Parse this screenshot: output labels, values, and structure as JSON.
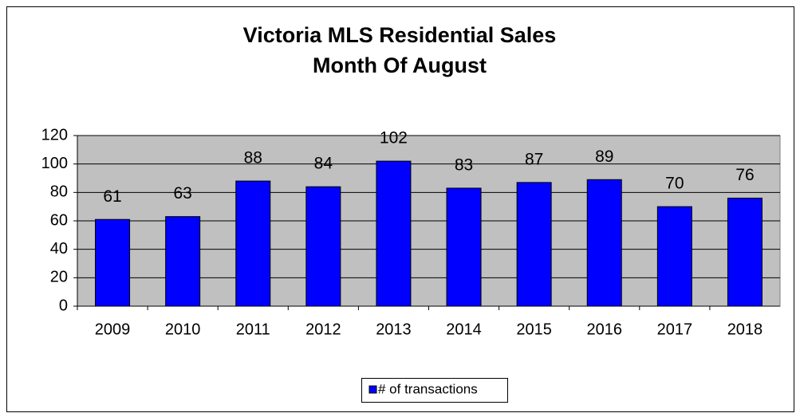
{
  "chart_data": {
    "type": "bar",
    "title": "Victoria MLS Residential Sales",
    "subtitle": "Month Of August",
    "categories": [
      "2009",
      "2010",
      "2011",
      "2012",
      "2013",
      "2014",
      "2015",
      "2016",
      "2017",
      "2018"
    ],
    "series": [
      {
        "name": "# of transactions",
        "color": "#0000ff",
        "values": [
          61,
          63,
          88,
          84,
          102,
          83,
          87,
          89,
          70,
          76
        ]
      }
    ],
    "ylim": [
      0,
      120
    ],
    "yticks": [
      0,
      20,
      40,
      60,
      80,
      100,
      120
    ],
    "grid": true,
    "legend": "bottom"
  }
}
